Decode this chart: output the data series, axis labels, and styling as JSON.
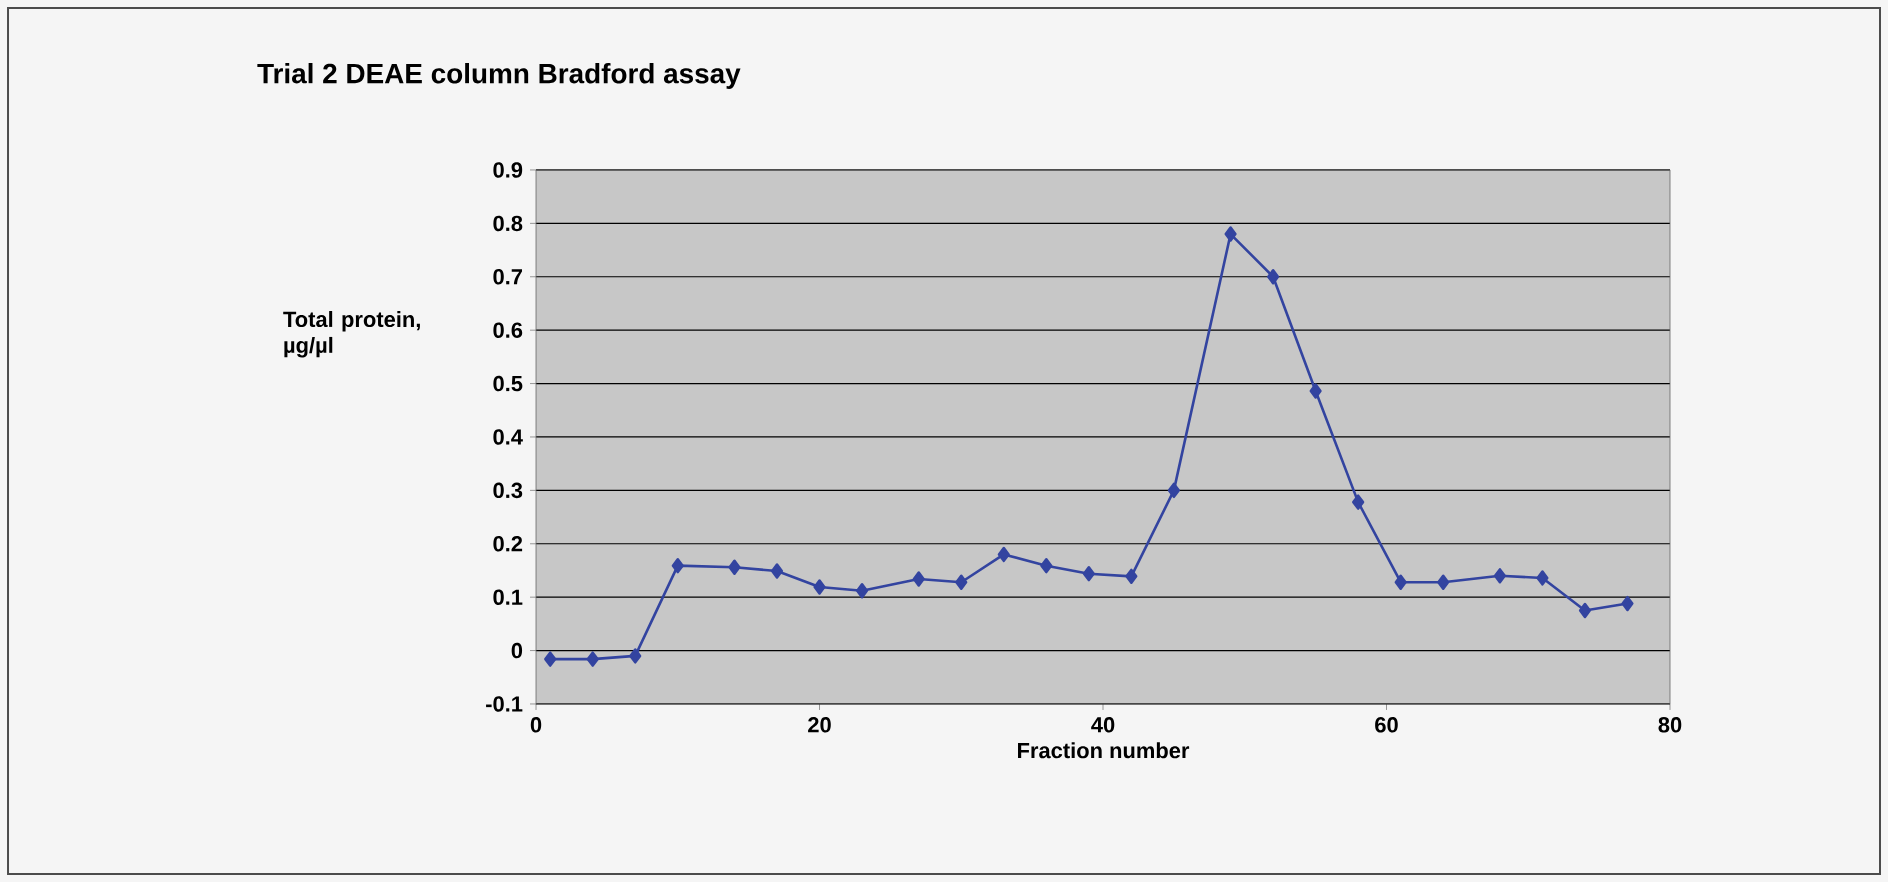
{
  "chart_data": {
    "type": "line",
    "title": "Trial 2 DEAE column Bradford assay",
    "xlabel": "Fraction number",
    "ylabel": "Total protein, µg/µl",
    "x": [
      1,
      4,
      7,
      10,
      14,
      17,
      20,
      23,
      27,
      30,
      33,
      36,
      39,
      42,
      45,
      49,
      52,
      55,
      58,
      61,
      64,
      68,
      71,
      74,
      77
    ],
    "series": [
      {
        "color": "#3344a0",
        "values": [
          -0.016,
          -0.016,
          -0.01,
          0.159,
          0.156,
          0.149,
          0.119,
          0.112,
          0.134,
          0.128,
          0.18,
          0.159,
          0.144,
          0.139,
          0.3,
          0.78,
          0.7,
          0.486,
          0.278,
          0.128,
          0.128,
          0.14,
          0.136,
          0.075,
          0.088
        ]
      }
    ],
    "xlim": [
      0,
      80
    ],
    "xticks": [
      0,
      20,
      40,
      60,
      80
    ],
    "ylim": [
      -0.1,
      0.9
    ],
    "yticks": [
      -0.1,
      0,
      0.1,
      0.2,
      0.3,
      0.4,
      0.5,
      0.6,
      0.7,
      0.8,
      0.9
    ],
    "grid": "y",
    "marker": "diamond",
    "line_style": "solid"
  }
}
